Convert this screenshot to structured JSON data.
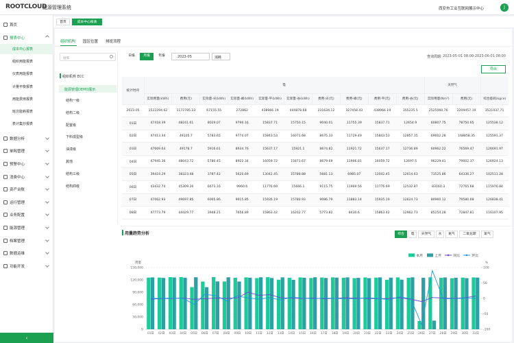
{
  "header": {
    "logo": "ROOTCLOUD",
    "system": "能源管理系统",
    "org": "西安市工业互联网展示中心",
    "avatar": "J"
  },
  "menu": [
    {
      "label": "首页"
    },
    {
      "label": "报表中心",
      "children": [
        "成本中心报表",
        "组织用能报表",
        "仪表用能报表",
        "计量平衡报表",
        "用能费用报表",
        "班次能耗报表",
        "表计集抄报表"
      ]
    },
    {
      "label": "数据分析"
    },
    {
      "label": "单耗管理"
    },
    {
      "label": "预警中心"
    },
    {
      "label": "消费中心"
    },
    {
      "label": "资产台账"
    },
    {
      "label": "运行管理"
    },
    {
      "label": "业务配置"
    },
    {
      "label": "能源管理"
    },
    {
      "label": "档案管理"
    },
    {
      "label": "数据运维"
    },
    {
      "label": "功能开发"
    }
  ],
  "tabs": [
    "首页",
    "成本中心报表"
  ],
  "subtabs": [
    "组织机构",
    "园区位置",
    "排班流程"
  ],
  "tree": {
    "search": "搜索",
    "root": "组织机构 ECC",
    "node": "能源管理DEMO展示",
    "children": [
      "结构一级",
      "结构二级",
      "配置级",
      "下料成型级",
      "油漆级",
      "其他",
      "结构三级",
      "结构四级"
    ]
  },
  "filters": {
    "periods": [
      "日报",
      "月报",
      "年报"
    ],
    "date": "2023-05",
    "select": "消耗",
    "range_label": "查询周期:",
    "range": "2023-05-01 08:00-2023-06-01 08:00",
    "export": "导出"
  },
  "table": {
    "corner": "统计时间",
    "groups": [
      {
        "label": "电",
        "span": 10
      },
      {
        "label": "天然气",
        "span": 2
      }
    ],
    "columns": [
      "实际用量(kWh)",
      "费用(元)",
      "实际量-尖(kWh)",
      "实际量-峰(kWh)",
      "实际量-平(kWh)",
      "实际量-谷(kWh)",
      "费用-尖(元)",
      "费用-峰(元)",
      "费用-平(元)",
      "费用-谷(元)",
      "实际用量(Nm³)",
      "费用(元)",
      "综合能耗(kgce)"
    ],
    "rows": [
      [
        "2023-05",
        1522294.62,
        1172785.23,
        67155.55,
        272862,
        438966.19,
        444878.68,
        231634.12,
        327458.43,
        438966.19,
        355235.5,
        2525060.76,
        2209457.19,
        3521037.71
      ],
      [
        "01日",
        47418.39,
        48241.61,
        8029.07,
        9796.16,
        15837.71,
        15750.15,
        9040.01,
        11755.39,
        15837.71,
        12654.9,
        60807.75,
        78750.65,
        125538.12
      ],
      [
        "02日",
        47413.34,
        49105.7,
        5783.65,
        9774.07,
        15843.53,
        16071.68,
        8675.33,
        11729.49,
        15843.53,
        12857.35,
        69602.28,
        168858.35,
        125591.37
      ],
      [
        "03日",
        47669.64,
        49178.7,
        5916.61,
        8934.76,
        15637.17,
        15921.1,
        8674.82,
        11921.72,
        15637.17,
        12736.89,
        60962.22,
        76569.47,
        126691.97
      ],
      [
        "04日",
        47945.36,
        48043.72,
        5780.45,
        8922.34,
        16059.72,
        15871.67,
        8679.69,
        11906.81,
        16059.72,
        12697.5,
        96229.41,
        79002.37,
        126924.13
      ],
      [
        "05日",
        39419.29,
        38323.48,
        3787.42,
        5620.69,
        13042.45,
        15788.88,
        5681.13,
        6985.07,
        13042.45,
        12614.63,
        73525.86,
        64336.27,
        102511.28
      ],
      [
        "06日",
        43432.74,
        45309.26,
        6673.16,
        9960.6,
        11776.69,
        15666.1,
        9115.75,
        11969.56,
        11776.69,
        12532.87,
        83160.3,
        72765.68,
        115976.84
      ],
      [
        "07日",
        47062.93,
        49697.85,
        6065.86,
        9915.85,
        15935.19,
        15780.93,
        9086.79,
        11883.14,
        15935.19,
        12624.73,
        80960.12,
        79580.68,
        126838.41
      ],
      [
        "08日",
        47773.79,
        44429.77,
        3948.21,
        7656.89,
        15863.42,
        16202.77,
        5773.82,
        8430.6,
        15863.42,
        12962.73,
        85254.28,
        72847.81,
        116107.95
      ]
    ]
  },
  "chart_filters": [
    "综合",
    "电",
    "天然气",
    "水",
    "氮气",
    "二氧化碳",
    "氧气"
  ],
  "chart_data": {
    "type": "bar",
    "title": "用量趋势分析",
    "y_label": "用量",
    "y2_label": "%",
    "categories": [
      "01日",
      "02日",
      "03日",
      "04日",
      "05日",
      "06日",
      "07日",
      "08日",
      "09日",
      "10日",
      "11日",
      "12日",
      "13日",
      "14日",
      "15日",
      "16日",
      "17日",
      "18日",
      "19日",
      "20日",
      "21日",
      "22日",
      "23日",
      "24日",
      "25日",
      "26日",
      "27日",
      "28日",
      "29日",
      "30日",
      "31日"
    ],
    "series": [
      {
        "name": "本月",
        "color": "#1ec99a",
        "type": "bar",
        "values": [
          125538,
          125591,
          126692,
          126924,
          102511,
          115977,
          126838,
          116108,
          125200,
          126100,
          124300,
          126500,
          120400,
          125100,
          126000,
          124500,
          125800,
          126200,
          125000,
          124100,
          126000,
          125500,
          120300,
          126000,
          125000,
          20000,
          126200,
          125100,
          124000,
          125500,
          126000
        ]
      },
      {
        "name": "上月",
        "color": "#2f9fa6",
        "type": "bar",
        "values": [
          126000,
          124800,
          125900,
          125300,
          126400,
          102300,
          116200,
          126300,
          116000,
          125400,
          126200,
          124500,
          126100,
          120200,
          125300,
          126300,
          124700,
          125500,
          126100,
          124900,
          124300,
          126100,
          125400,
          120600,
          126200,
          125200,
          21000,
          126000,
          125300,
          124200,
          125600
        ]
      },
      {
        "name": "同比",
        "color": "#6a45cf",
        "type": "line",
        "axis": "y2",
        "values": [
          -2,
          -1,
          0,
          1,
          -3,
          -1,
          1,
          0,
          2,
          20,
          10,
          12,
          2,
          1,
          0,
          1,
          -1,
          0,
          2,
          1,
          0,
          -1,
          0,
          2,
          -3,
          -10,
          3,
          1,
          0,
          2,
          8
        ]
      },
      {
        "name": "环比",
        "color": "#1c9ad6",
        "type": "line",
        "axis": "y2",
        "values": [
          0,
          0,
          1,
          0,
          -19,
          13,
          9,
          -8,
          8,
          1,
          -2,
          2,
          -5,
          4,
          1,
          -1,
          1,
          0,
          -1,
          -1,
          2,
          0,
          -4,
          5,
          -1,
          -84,
          90,
          -1,
          -1,
          1,
          0
        ]
      }
    ],
    "ylim": [
      0,
      150000
    ],
    "yticks": [
      0,
      {
        "value": 30000,
        "label": "30,000"
      },
      {
        "value": 60000,
        "label": "60,000"
      },
      {
        "value": 90000,
        "label": "90,000"
      },
      {
        "value": 120000,
        "label": "120,000"
      },
      {
        "value": 150000,
        "label": "150,000"
      }
    ],
    "y2lim": [
      -100,
      100
    ],
    "y2ticks": [
      -100,
      -50,
      0,
      50,
      100
    ],
    "grid": true,
    "legend": "top-right"
  }
}
